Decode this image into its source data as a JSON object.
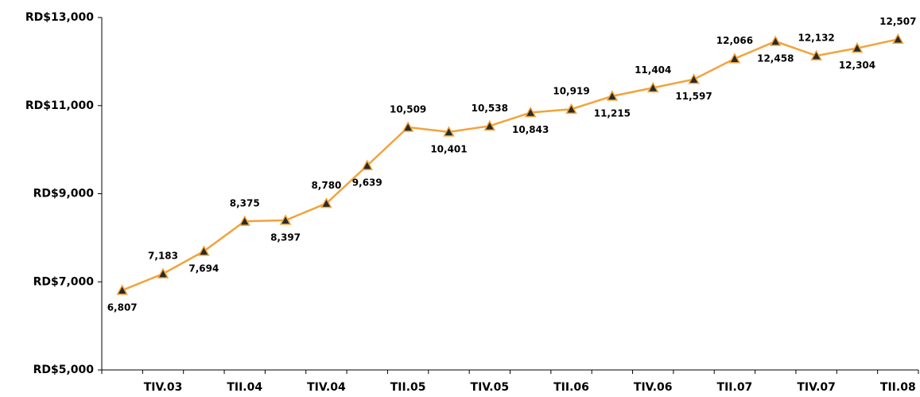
{
  "chart_data": {
    "type": "line",
    "categories": [
      null,
      "TIV.03",
      null,
      "TII.04",
      null,
      "TIV.04",
      null,
      "TII.05",
      null,
      "TIV.05",
      null,
      "TII.06",
      null,
      "TIV.06",
      null,
      "TII.07",
      null,
      "TIV.07",
      null,
      "TII.08"
    ],
    "values": [
      6807,
      7183,
      7694,
      8375,
      8397,
      8780,
      9639,
      10509,
      10401,
      10538,
      10843,
      10919,
      11215,
      11404,
      11597,
      12066,
      12458,
      12132,
      12304,
      12507
    ],
    "value_labels": [
      "6,807",
      "7,183",
      "7,694",
      "8,375",
      "8,397",
      "8,780",
      "9,639",
      "10,509",
      "10,401",
      "10,538",
      "10,843",
      "10,919",
      "11,215",
      "11,404",
      "11,597",
      "12,066",
      "12,458",
      "12,132",
      "12,304",
      "12,507"
    ],
    "color": "#f2a33a",
    "ylim": [
      5000,
      13000
    ],
    "yticks": [
      {
        "value": 5000,
        "label": "RD$5,000"
      },
      {
        "value": 7000,
        "label": "RD$7,000"
      },
      {
        "value": 9000,
        "label": "RD$9,000"
      },
      {
        "value": 11000,
        "label": "RD$11,000"
      },
      {
        "value": 13000,
        "label": "RD$13,000"
      }
    ],
    "grid": false
  }
}
